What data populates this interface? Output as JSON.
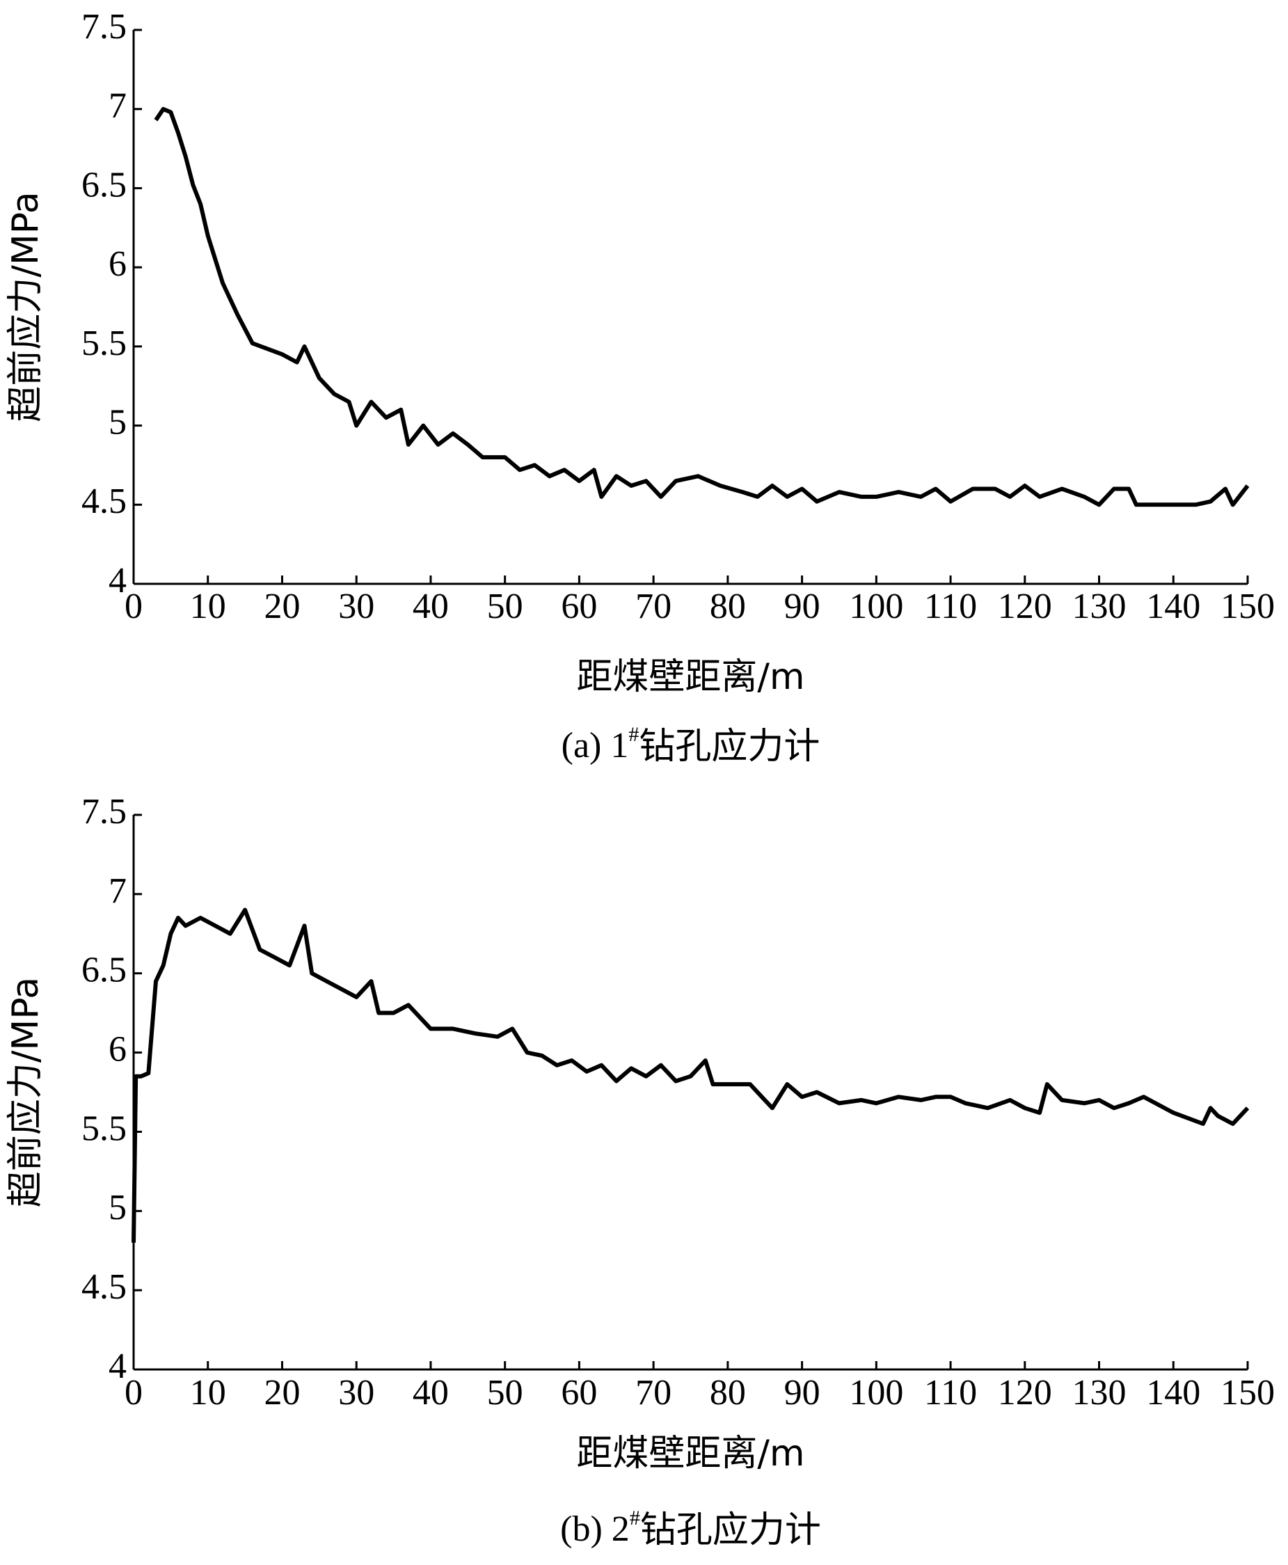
{
  "chart_data": [
    {
      "type": "line",
      "x_label": "距煤壁距离/m",
      "y_label": "超前应力/MPa",
      "caption_parts": [
        "(a) 1",
        "#",
        "钻孔应力计"
      ],
      "xlim": [
        0,
        150
      ],
      "ylim": [
        4,
        7.5
      ],
      "xticks": [
        0,
        10,
        20,
        30,
        40,
        50,
        60,
        70,
        80,
        90,
        100,
        110,
        120,
        130,
        140,
        150
      ],
      "yticks": [
        4,
        4.5,
        5,
        5.5,
        6,
        6.5,
        7,
        7.5
      ],
      "series": [
        {
          "color": "#000000",
          "x": [
            3,
            4,
            5,
            6,
            7,
            8,
            9,
            10,
            11,
            12,
            14,
            16,
            20,
            22,
            23,
            25,
            27,
            29,
            30,
            32,
            34,
            36,
            37,
            39,
            41,
            43,
            45,
            47,
            50,
            52,
            54,
            56,
            58,
            60,
            62,
            63,
            65,
            67,
            69,
            71,
            73,
            76,
            79,
            82,
            84,
            86,
            88,
            90,
            92,
            95,
            98,
            100,
            103,
            106,
            108,
            110,
            113,
            116,
            118,
            120,
            122,
            125,
            128,
            130,
            132,
            134,
            135,
            140,
            143,
            145,
            147,
            148,
            150
          ],
          "values": [
            6.93,
            7.0,
            6.98,
            6.85,
            6.7,
            6.52,
            6.4,
            6.2,
            6.05,
            5.9,
            5.7,
            5.52,
            5.45,
            5.4,
            5.5,
            5.3,
            5.2,
            5.15,
            5.0,
            5.15,
            5.05,
            5.1,
            4.88,
            5.0,
            4.88,
            4.95,
            4.88,
            4.8,
            4.8,
            4.72,
            4.75,
            4.68,
            4.72,
            4.65,
            4.72,
            4.55,
            4.68,
            4.62,
            4.65,
            4.55,
            4.65,
            4.68,
            4.62,
            4.58,
            4.55,
            4.62,
            4.55,
            4.6,
            4.52,
            4.58,
            4.55,
            4.55,
            4.58,
            4.55,
            4.6,
            4.52,
            4.6,
            4.6,
            4.55,
            4.62,
            4.55,
            4.6,
            4.55,
            4.5,
            4.6,
            4.6,
            4.5,
            4.5,
            4.5,
            4.52,
            4.6,
            4.5,
            4.62
          ]
        }
      ]
    },
    {
      "type": "line",
      "x_label": "距煤壁距离/m",
      "y_label": "超前应力/MPa",
      "caption_parts": [
        "(b) 2",
        "#",
        "钻孔应力计"
      ],
      "xlim": [
        0,
        150
      ],
      "ylim": [
        4,
        7.5
      ],
      "xticks": [
        0,
        10,
        20,
        30,
        40,
        50,
        60,
        70,
        80,
        90,
        100,
        110,
        120,
        130,
        140,
        150
      ],
      "yticks": [
        4,
        4.5,
        5,
        5.5,
        6,
        6.5,
        7,
        7.5
      ],
      "series": [
        {
          "color": "#000000",
          "x": [
            0,
            0.3,
            1,
            2,
            3,
            4,
            5,
            6,
            7,
            9,
            11,
            13,
            15,
            17,
            19,
            21,
            23,
            24,
            26,
            28,
            30,
            32,
            33,
            35,
            37,
            40,
            43,
            46,
            49,
            51,
            53,
            55,
            57,
            59,
            61,
            63,
            65,
            67,
            69,
            71,
            73,
            75,
            77,
            78,
            83,
            85,
            86,
            88,
            90,
            92,
            95,
            98,
            100,
            103,
            106,
            108,
            110,
            112,
            115,
            118,
            120,
            122,
            123,
            125,
            128,
            130,
            132,
            134,
            136,
            140,
            144,
            145,
            146,
            148,
            149,
            150
          ],
          "values": [
            4.8,
            5.85,
            5.85,
            5.87,
            6.45,
            6.55,
            6.75,
            6.85,
            6.8,
            6.85,
            6.8,
            6.75,
            6.9,
            6.65,
            6.6,
            6.55,
            6.8,
            6.5,
            6.45,
            6.4,
            6.35,
            6.45,
            6.25,
            6.25,
            6.3,
            6.15,
            6.15,
            6.12,
            6.1,
            6.15,
            6.0,
            5.98,
            5.92,
            5.95,
            5.88,
            5.92,
            5.82,
            5.9,
            5.85,
            5.92,
            5.82,
            5.85,
            5.95,
            5.8,
            5.8,
            5.7,
            5.65,
            5.8,
            5.72,
            5.75,
            5.68,
            5.7,
            5.68,
            5.72,
            5.7,
            5.72,
            5.72,
            5.68,
            5.65,
            5.7,
            5.65,
            5.62,
            5.8,
            5.7,
            5.68,
            5.7,
            5.65,
            5.68,
            5.72,
            5.62,
            5.55,
            5.65,
            5.6,
            5.55,
            5.6,
            5.65
          ]
        }
      ]
    }
  ]
}
